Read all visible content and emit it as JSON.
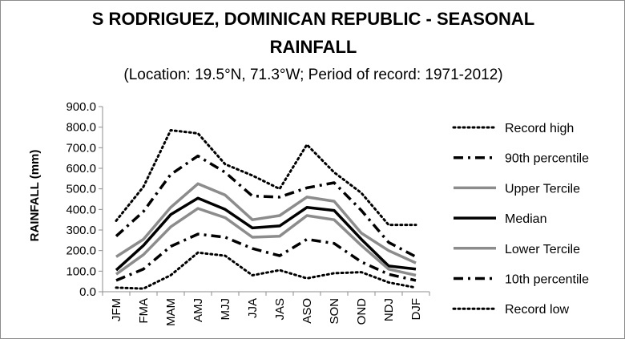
{
  "chart_data": {
    "type": "line",
    "title_line1": "S RODRIGUEZ, DOMINICAN REPUBLIC - SEASONAL",
    "title_line2": "RAINFALL",
    "subtitle": "(Location: 19.5°N, 71.3°W; Period of record: 1971-2012)",
    "ylabel": "RAINFALL (mm)",
    "xlabel": "",
    "ylim": [
      0,
      900
    ],
    "ytick_step": 100,
    "ytick_labels": [
      "0.0",
      "100.0",
      "200.0",
      "300.0",
      "400.0",
      "500.0",
      "600.0",
      "700.0",
      "800.0",
      "900.0"
    ],
    "grid": false,
    "legend_position": "right",
    "categories": [
      "JFM",
      "FMA",
      "MAM",
      "AMJ",
      "MJJ",
      "JJA",
      "JAS",
      "ASO",
      "SON",
      "OND",
      "NDJ",
      "DJF"
    ],
    "series": [
      {
        "name": "Record high",
        "style": "dotted",
        "color": "#000000",
        "values": [
          345,
          510,
          785,
          770,
          620,
          565,
          500,
          715,
          580,
          480,
          325,
          325
        ]
      },
      {
        "name": "90th percentile",
        "style": "dashdot",
        "color": "#000000",
        "values": [
          270,
          390,
          570,
          660,
          580,
          465,
          460,
          505,
          530,
          395,
          240,
          170
        ]
      },
      {
        "name": "Upper Tercile",
        "style": "solid-thick",
        "color": "#8c8c8c",
        "values": [
          170,
          255,
          410,
          525,
          470,
          350,
          370,
          460,
          440,
          285,
          200,
          140
        ]
      },
      {
        "name": "Median",
        "style": "solid-thick",
        "color": "#000000",
        "values": [
          105,
          225,
          375,
          455,
          400,
          310,
          320,
          410,
          395,
          255,
          125,
          110
        ]
      },
      {
        "name": "Lower Tercile",
        "style": "solid-thick",
        "color": "#8c8c8c",
        "values": [
          85,
          180,
          315,
          405,
          360,
          265,
          270,
          370,
          350,
          225,
          110,
          80
        ]
      },
      {
        "name": "10th percentile",
        "style": "dashdot",
        "color": "#000000",
        "values": [
          55,
          110,
          220,
          280,
          265,
          210,
          175,
          255,
          235,
          145,
          85,
          55
        ]
      },
      {
        "name": "Record low",
        "style": "dotted",
        "color": "#000000",
        "values": [
          20,
          15,
          80,
          190,
          175,
          80,
          105,
          65,
          90,
          95,
          45,
          20
        ]
      }
    ]
  }
}
